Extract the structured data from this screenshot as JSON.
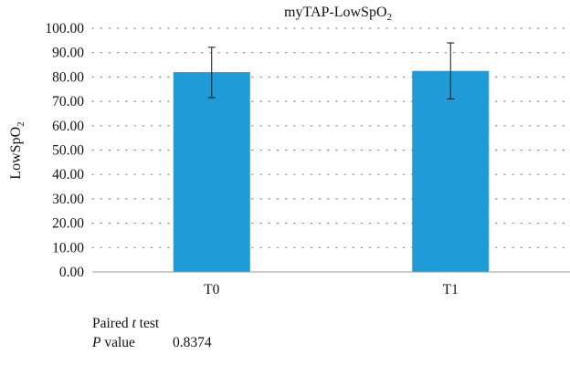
{
  "chart_data": {
    "type": "bar",
    "title": "myTAP-LowSpO",
    "title_sub": "2",
    "ylabel": "LowSpO",
    "ylabel_sub": "2",
    "xlabel": "",
    "categories": [
      "T0",
      "T1"
    ],
    "values": [
      82.0,
      82.5
    ],
    "error_low": [
      71.5,
      71.0
    ],
    "error_high": [
      92.2,
      94.0
    ],
    "ylim": [
      0,
      100
    ],
    "yticks": [
      "0.00",
      "10.00",
      "20.00",
      "30.00",
      "40.00",
      "50.00",
      "60.00",
      "70.00",
      "80.00",
      "90.00",
      "100.00"
    ],
    "grid": "dotted horizontal",
    "bar_color": "#1f9bd7"
  },
  "stats": {
    "test_prefix": "Paired ",
    "test_italic": "t",
    "test_suffix": " test",
    "pvalue_italic": "P",
    "pvalue_suffix": " value",
    "pvalue": "0.8374"
  }
}
